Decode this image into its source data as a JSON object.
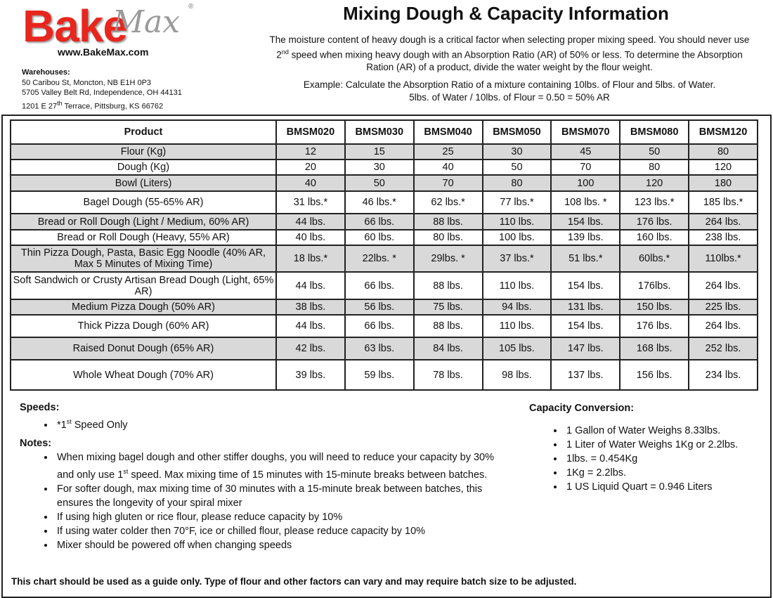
{
  "header": {
    "logo": {
      "bake": "Bake",
      "max": "Max",
      "registered": "®"
    },
    "website": "www.BakeMax.com",
    "warehouses": {
      "label": "Warehouses:",
      "lines": [
        "50 Caribou St, Moncton, NB E1H 0P3",
        "5705 Valley Belt Rd, Independence, OH 44131",
        {
          "before": "1201 E 27",
          "sup": "th",
          "after": " Terrace, Pittsburg, KS 66762"
        }
      ]
    },
    "title": "Mixing Dough & Capacity Information",
    "intro": {
      "before": "The moisture content of heavy dough is a critical factor when selecting proper mixing speed. You should never use 2",
      "sup": "nd",
      "after": " speed when mixing heavy dough with an Absorption Ratio (AR) of 50% or less. To determine the Absorption Ration (AR) of a product, divide the water weight by the flour weight."
    },
    "example": [
      "Example: Calculate the Absorption Ratio of a mixture containing 10lbs. of Flour and 5lbs. of Water.",
      "5lbs. of Water / 10lbs. of Flour = 0.50 = 50% AR"
    ]
  },
  "table": {
    "columns": [
      "Product",
      "BMSM020",
      "BMSM030",
      "BMSM040",
      "BMSM050",
      "BMSM070",
      "BMSM080",
      "BMSM120"
    ],
    "rows": [
      [
        "Flour (Kg)",
        "12",
        "15",
        "25",
        "30",
        "45",
        "50",
        "80"
      ],
      [
        "Dough (Kg)",
        "20",
        "30",
        "40",
        "50",
        "70",
        "80",
        "120"
      ],
      [
        "Bowl (Liters)",
        "40",
        "50",
        "70",
        "80",
        "100",
        "120",
        "180"
      ],
      [
        "Bagel Dough (55-65% AR)",
        "31 lbs.*",
        "46 lbs.*",
        "62 lbs.*",
        "77 lbs.*",
        "108 lbs. *",
        "123 lbs.*",
        "185 lbs.*"
      ],
      [
        "Bread or Roll Dough (Light / Medium, 60% AR)",
        "44 lbs.",
        "66 lbs.",
        "88 lbs.",
        "110 lbs.",
        "154 lbs.",
        "176 lbs.",
        "264 lbs."
      ],
      [
        "Bread or Roll Dough (Heavy, 55% AR)",
        "40 lbs.",
        "60 lbs.",
        "80 lbs.",
        "100 lbs.",
        "139 lbs.",
        "160 lbs.",
        "238 lbs."
      ],
      [
        "Thin Pizza Dough, Pasta, Basic Egg Noodle (40% AR, Max 5 Minutes of Mixing Time)",
        "18 lbs.*",
        "22lbs. *",
        "29lbs. *",
        "37 lbs.*",
        "51 lbs.*",
        "60lbs.*",
        "110lbs.*"
      ],
      [
        "Soft Sandwich or Crusty Artisan Bread Dough (Light, 65% AR)",
        "44 lbs.",
        "66 lbs.",
        "88 lbs.",
        "110 lbs.",
        "154 lbs.",
        "176lbs.",
        "264 lbs."
      ],
      [
        "Medium Pizza Dough (50% AR)",
        "38 lbs.",
        "56 lbs.",
        "75 lbs.",
        "94 lbs.",
        "131 lbs.",
        "150 lbs.",
        "225 lbs."
      ],
      [
        "Thick Pizza Dough (60% AR)",
        "44 lbs.",
        "66 lbs.",
        "88 lbs.",
        "110 lbs.",
        "154 lbs.",
        "176 lbs.",
        "264 lbs."
      ],
      [
        "Raised Donut Dough (65% AR)",
        "42 lbs.",
        "63 lbs.",
        "84 lbs.",
        "105 lbs.",
        "147 lbs.",
        "168 lbs.",
        "252 lbs."
      ],
      [
        "Whole Wheat Dough (70% AR)",
        "39 lbs.",
        "59 lbs.",
        "78 lbs.",
        "98 lbs.",
        "137 lbs.",
        "156 lbs.",
        "234 lbs."
      ]
    ]
  },
  "speeds": {
    "label": "Speeds:",
    "items": [
      {
        "before": "*1",
        "sup": "st",
        "after": " Speed Only"
      }
    ]
  },
  "notes": {
    "label": "Notes:",
    "items": [
      {
        "before": "When mixing bagel dough and other stiffer doughs, you will need to reduce your capacity by 30% and only use 1",
        "sup": "st",
        "after": " speed. Max mixing time of 15 minutes with 15-minute breaks between batches."
      },
      "For softer dough, max mixing time of 30 minutes with a 15-minute break between batches, this ensures the longevity of your spiral mixer",
      "If using high gluten or rice flour, please reduce capacity by 10%",
      "If using water colder then 70°F, ice or chilled flour, please reduce capacity by 10%",
      "Mixer should be powered off when changing speeds"
    ]
  },
  "capacity_conversion": {
    "label": "Capacity Conversion:",
    "items": [
      "1 Gallon of Water Weighs 8.33lbs.",
      "1 Liter of Water Weighs 1Kg or 2.2lbs.",
      "1lbs. = 0.454Kg",
      "1Kg = 2.2lbs.",
      "1 US Liquid Quart = 0.946 Liters"
    ]
  },
  "footer": "This chart should be used as a guide only. Type of flour and other factors can vary and may require batch size to be adjusted."
}
